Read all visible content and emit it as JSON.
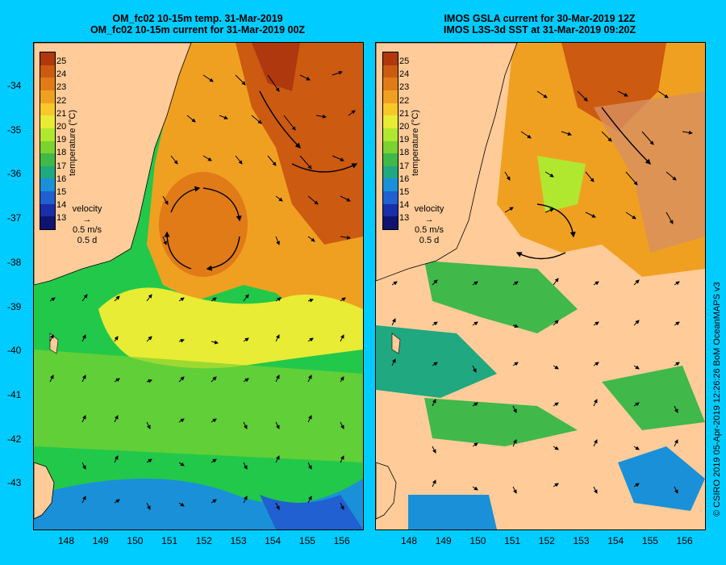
{
  "left_panel": {
    "title_line1": "OM_fc02 10-15m temp. 31-Mar-2019",
    "title_line2": "OM_fc02 10-15m current for 31-Mar-2019 00Z"
  },
  "right_panel": {
    "title_line1": "IMOS GSLA current for 30-Mar-2019 12Z",
    "title_line2": "IMOS L3S-3d SST at 31-Mar-2019 09:20Z"
  },
  "latitude_labels": [
    "-34",
    "-35",
    "-36",
    "-37",
    "-38",
    "-39",
    "-40",
    "-41",
    "-42",
    "-43"
  ],
  "longitude_labels": [
    "148",
    "149",
    "150",
    "151",
    "152",
    "153",
    "154",
    "155",
    "156"
  ],
  "colorbar": {
    "title": "temperature (°C)",
    "labels": [
      "25",
      "24",
      "23",
      "22",
      "21",
      "20",
      "19",
      "18",
      "17",
      "16",
      "15",
      "14",
      "13"
    ],
    "colors": [
      "#b0380e",
      "#cc5a10",
      "#e07b17",
      "#f0a021",
      "#f8c82a",
      "#e8ec34",
      "#b0e830",
      "#7cd230",
      "#40b84a",
      "#20a880",
      "#1a90d8",
      "#2060d0",
      "#1a2ea8",
      "#101470"
    ]
  },
  "velocity_legend": {
    "label": "velocity",
    "speed": "0.5 m/s",
    "duration": "0.5 d"
  },
  "credit": "© CSIRO 2019   05-Apr-2019 12:26:26 BoM OceanMAPS v3",
  "colors": {
    "background": "#00ccff",
    "land": "#ffcc99",
    "no_data": "#ffcc99"
  }
}
